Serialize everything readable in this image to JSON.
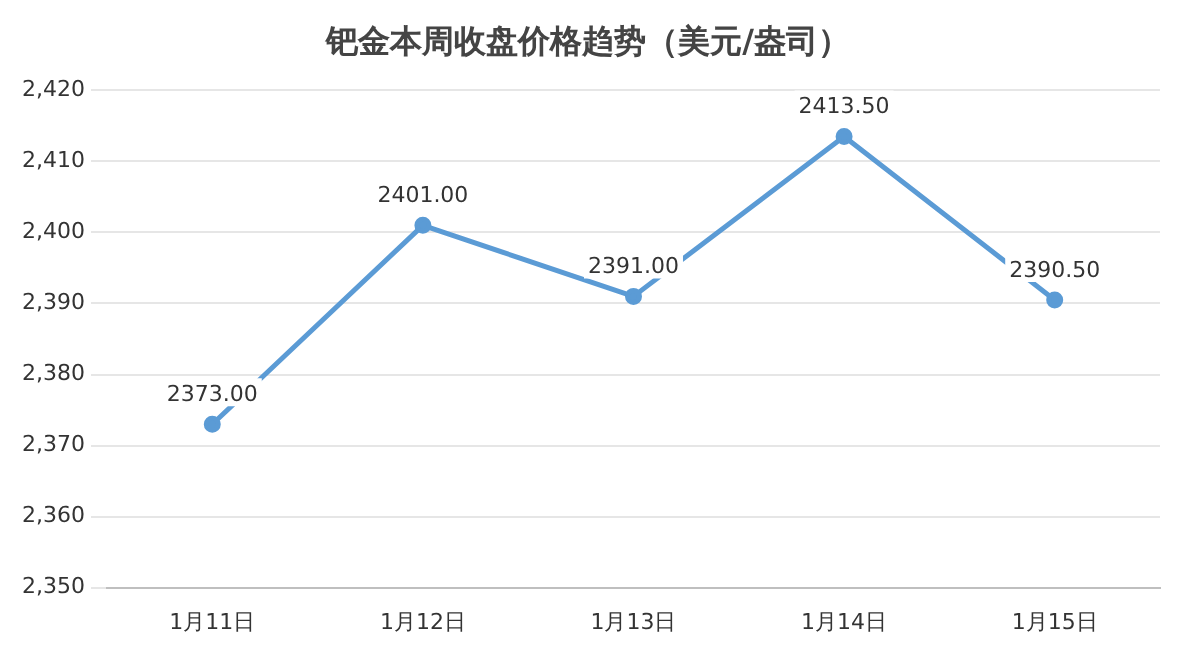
{
  "chart_data": {
    "type": "line",
    "title": "钯金本周收盘价格趋势（美元/盎司）",
    "categories": [
      "1月11日",
      "1月12日",
      "1月13日",
      "1月14日",
      "1月15日"
    ],
    "series": [
      {
        "color": "#5b9bd5",
        "values": [
          2373,
          2401,
          2391,
          2413.5,
          2390.5
        ],
        "value_labels": [
          "2373.00",
          "2401.00",
          "2391.00",
          "2413.50",
          "2390.50"
        ]
      }
    ],
    "ylim": [
      2350,
      2420
    ],
    "yticks": [
      {
        "value": 2350,
        "label": "2,350"
      },
      {
        "value": 2360,
        "label": "2,360"
      },
      {
        "value": 2370,
        "label": "2,370"
      },
      {
        "value": 2380,
        "label": "2,380"
      },
      {
        "value": 2390,
        "label": "2,390"
      },
      {
        "value": 2400,
        "label": "2,400"
      },
      {
        "value": 2410,
        "label": "2,410"
      },
      {
        "value": 2420,
        "label": "2,420"
      }
    ],
    "grid": "y",
    "legend": false,
    "marker": "circle",
    "line_style": "solid"
  }
}
